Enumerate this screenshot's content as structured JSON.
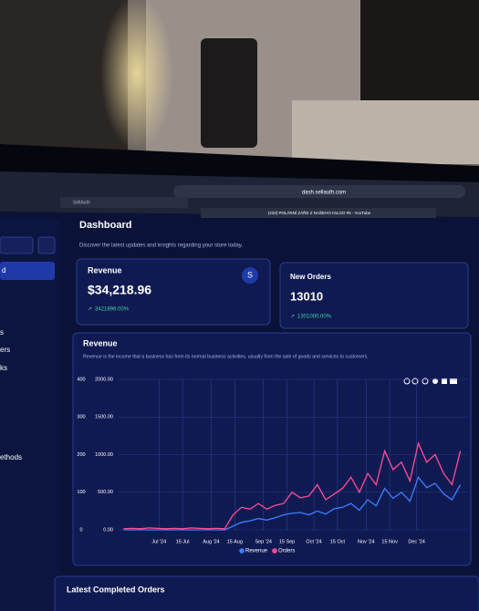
{
  "browser": {
    "url": "dash.sellauth.com",
    "tabs": [
      "SellAuth",
      "(233) POLÁRNÍ ZÁŘE Z NAŠEHO IGLOO #5 - YouTube"
    ]
  },
  "sidebar": {
    "active": "d",
    "items": [
      "s",
      "ers",
      "ks",
      "ethods"
    ]
  },
  "header": {
    "title": "Dashboard",
    "subtitle": "Discover the latest updates and insights regarding your store today."
  },
  "cards": [
    {
      "title": "Revenue",
      "value": "$34,218.96",
      "change": "3421896.00%",
      "icon": "S"
    },
    {
      "title": "New Orders",
      "value": "13010",
      "change": "1301000.00%"
    }
  ],
  "chart_data": {
    "type": "line",
    "title": "Revenue",
    "subtitle": "Revenue is the income that a business has from its normal business activities, usually from the sale of goods and services to customers.",
    "x": [
      "2024-06-10",
      "2024-06-15",
      "2024-06-20",
      "2024-06-25",
      "2024-06-30",
      "2024-07-05",
      "2024-07-10",
      "2024-07-15",
      "2024-07-20",
      "2024-07-25",
      "2024-07-30",
      "2024-08-04",
      "2024-08-09",
      "2024-08-14",
      "2024-08-19",
      "2024-08-24",
      "2024-08-29",
      "2024-09-03",
      "2024-09-08",
      "2024-09-13",
      "2024-09-18",
      "2024-09-23",
      "2024-09-28",
      "2024-10-03",
      "2024-10-08",
      "2024-10-13",
      "2024-10-18",
      "2024-10-23",
      "2024-10-28",
      "2024-11-02",
      "2024-11-07",
      "2024-11-12",
      "2024-11-17",
      "2024-11-22",
      "2024-11-27",
      "2024-12-02",
      "2024-12-07",
      "2024-12-12",
      "2024-12-17",
      "2024-12-22",
      "2024-12-27"
    ],
    "series": [
      {
        "name": "Revenue",
        "color": "#3d7fff",
        "axis": "y2",
        "values": [
          0,
          0,
          0,
          0,
          0,
          0,
          0,
          0,
          0,
          0,
          0,
          0,
          0,
          50,
          100,
          120,
          150,
          130,
          160,
          200,
          220,
          230,
          200,
          250,
          210,
          280,
          300,
          350,
          260,
          400,
          320,
          550,
          420,
          500,
          380,
          700,
          560,
          620,
          480,
          400,
          600
        ]
      },
      {
        "name": "Orders",
        "color": "#ff4d94",
        "values": [
          3,
          4,
          3,
          5,
          4,
          3,
          4,
          3,
          5,
          4,
          3,
          4,
          3,
          40,
          60,
          55,
          70,
          55,
          65,
          70,
          100,
          85,
          90,
          120,
          80,
          95,
          110,
          140,
          100,
          150,
          120,
          210,
          160,
          180,
          130,
          230,
          180,
          200,
          150,
          120,
          210
        ]
      }
    ],
    "xlim": [
      "2024-06-07",
      "2024-12-31"
    ],
    "xticks": [
      {
        "value": "2024-07-01",
        "label": "Jul '24"
      },
      {
        "value": "2024-07-15",
        "label": "15 Jul"
      },
      {
        "value": "2024-08-01",
        "label": "Aug '24"
      },
      {
        "value": "2024-08-15",
        "label": "15 Aug"
      },
      {
        "value": "2024-09-01",
        "label": "Sep '24"
      },
      {
        "value": "2024-09-15",
        "label": "15 Sep"
      },
      {
        "value": "2024-10-01",
        "label": "Oct '24"
      },
      {
        "value": "2024-10-15",
        "label": "15 Oct"
      },
      {
        "value": "2024-11-01",
        "label": "Nov '24"
      },
      {
        "value": "2024-11-15",
        "label": "15 Nov"
      },
      {
        "value": "2024-12-01",
        "label": "Dec '24"
      }
    ],
    "ylim": [
      0,
      400
    ],
    "yticks": [
      0,
      100,
      200,
      300,
      400
    ],
    "y2lim": [
      0,
      2000
    ],
    "y2ticks": [
      {
        "value": 0,
        "label": "0.00"
      },
      {
        "value": 500,
        "label": "500.00"
      },
      {
        "value": 1000,
        "label": "1000.00"
      },
      {
        "value": 1500,
        "label": "1500.00"
      },
      {
        "value": 2000,
        "label": "2000.00"
      }
    ],
    "grid": true,
    "legend": "bottom"
  },
  "orders_section": {
    "title": "Latest Completed Orders"
  }
}
